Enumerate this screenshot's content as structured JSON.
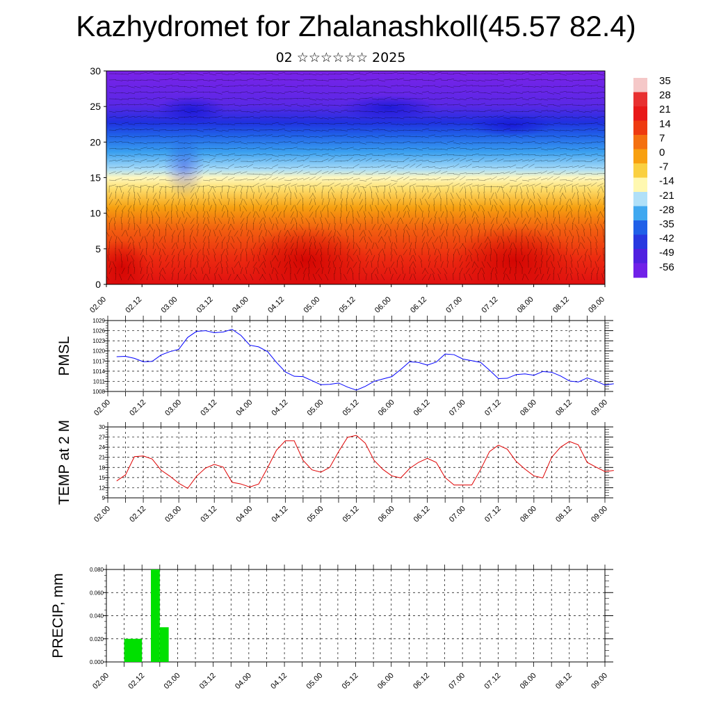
{
  "header": {
    "title": "Kazhydromet for Zhalanashkoll(45.57 82.4)",
    "subtitle": "02 ☆☆☆☆☆☆ 2025"
  },
  "colors": {
    "pmsl_line": "#0000ff",
    "temp_line": "#e00000",
    "precip_bar": "#00e000",
    "grid": "#000000"
  },
  "time_ticks": [
    "02.00",
    "02.12",
    "03.00",
    "03.12",
    "04.00",
    "04.12",
    "05.00",
    "05.12",
    "06.00",
    "06.12",
    "07.00",
    "07.12",
    "08.00",
    "08.12",
    "09.00"
  ],
  "chart_data": [
    {
      "type": "heatmap",
      "description_free": true,
      "x": "time_ticks",
      "ylim": [
        0,
        30
      ],
      "yticks": [
        0,
        5,
        10,
        15,
        20,
        25,
        30
      ],
      "colorbar": {
        "labels": [
          "35",
          "28",
          "21",
          "14",
          "7",
          "0",
          "-7",
          "-14",
          "-21",
          "-28",
          "-35",
          "-42",
          "-49",
          "-56"
        ],
        "colors": [
          "#f5c8c8",
          "#e83030",
          "#e81818",
          "#ee3a10",
          "#f47010",
          "#f8a010",
          "#fad040",
          "#fff8b0",
          "#b0e0f8",
          "#40a8f0",
          "#2060e8",
          "#2838e0",
          "#5020e0",
          "#7020e8"
        ]
      },
      "legend_position": "right"
    },
    {
      "type": "line",
      "ylabel": "PMSL",
      "ylim": [
        1008,
        1029
      ],
      "yticks": [
        1008,
        1011,
        1014,
        1017,
        1020,
        1023,
        1026,
        1029
      ],
      "x": [
        0,
        3,
        6,
        9,
        12,
        15,
        18,
        21,
        24,
        27,
        30,
        33,
        36,
        39,
        42,
        45,
        48,
        51,
        54,
        57,
        60,
        63,
        66,
        69,
        72,
        75,
        78,
        81,
        84,
        87,
        90,
        93,
        96,
        99,
        102,
        105,
        108,
        111,
        114,
        117,
        120,
        123,
        126,
        129,
        132,
        135,
        138,
        141,
        144,
        147,
        150,
        153,
        156,
        159,
        162,
        165,
        168
      ],
      "series": [
        {
          "values": [
            1018.3,
            1018.4,
            1017.8,
            1016.8,
            1016.9,
            1018.8,
            1019.8,
            1020.5,
            1024.0,
            1025.8,
            1026.0,
            1025.4,
            1025.6,
            1026.4,
            1024.6,
            1021.7,
            1021.2,
            1019.8,
            1016.6,
            1013.8,
            1012.5,
            1012.4,
            1011.2,
            1010.0,
            1010.1,
            1010.5,
            1009.3,
            1008.4,
            1009.5,
            1011.0,
            1011.7,
            1012.4,
            1014.5,
            1016.8,
            1016.6,
            1015.8,
            1016.7,
            1019.1,
            1018.9,
            1017.6,
            1017.1,
            1016.6,
            1014.3,
            1011.8,
            1011.9,
            1013.0,
            1013.2,
            1012.8,
            1013.9,
            1013.7,
            1012.6,
            1011.1,
            1010.8,
            1012.0,
            1011.1,
            1009.9,
            1010.3
          ]
        }
      ]
    },
    {
      "type": "line",
      "ylabel": "TEMP at 2 M",
      "ylim": [
        9,
        30
      ],
      "yticks": [
        9,
        12,
        15,
        18,
        21,
        24,
        27,
        30
      ],
      "x": [
        0,
        3,
        6,
        9,
        12,
        15,
        18,
        21,
        24,
        27,
        30,
        33,
        36,
        39,
        42,
        45,
        48,
        51,
        54,
        57,
        60,
        63,
        66,
        69,
        72,
        75,
        78,
        81,
        84,
        87,
        90,
        93,
        96,
        99,
        102,
        105,
        108,
        111,
        114,
        117,
        120,
        123,
        126,
        129,
        132,
        135,
        138,
        141,
        144,
        147,
        150,
        153,
        156,
        159,
        162,
        165,
        168
      ],
      "series": [
        {
          "values": [
            14.0,
            15.8,
            21.2,
            21.4,
            20.5,
            17.2,
            15.4,
            13.3,
            11.8,
            15.4,
            17.8,
            18.9,
            18.1,
            13.6,
            13.1,
            12.2,
            13.1,
            17.9,
            23.1,
            25.9,
            25.9,
            20.1,
            17.3,
            16.6,
            18.0,
            22.7,
            26.9,
            27.5,
            25.2,
            20.1,
            17.4,
            15.5,
            14.9,
            17.7,
            19.5,
            20.7,
            19.5,
            15.0,
            12.8,
            12.8,
            12.8,
            17.4,
            22.7,
            24.6,
            23.4,
            19.8,
            17.5,
            15.5,
            14.9,
            21.0,
            24.0,
            25.7,
            24.7,
            19.5,
            18.1,
            16.8,
            17.1
          ]
        }
      ]
    },
    {
      "type": "bar",
      "ylabel": "PRECIP, mm",
      "ylim": [
        0,
        0.08
      ],
      "yticks": [
        "0.000",
        "0.020",
        "0.040",
        "0.060",
        "0.080"
      ],
      "bars": [
        {
          "x0": 3,
          "x1": 9,
          "value": 0.02
        },
        {
          "x0": 12,
          "x1": 15,
          "value": 0.08
        },
        {
          "x0": 15,
          "x1": 18,
          "value": 0.03
        }
      ]
    }
  ]
}
